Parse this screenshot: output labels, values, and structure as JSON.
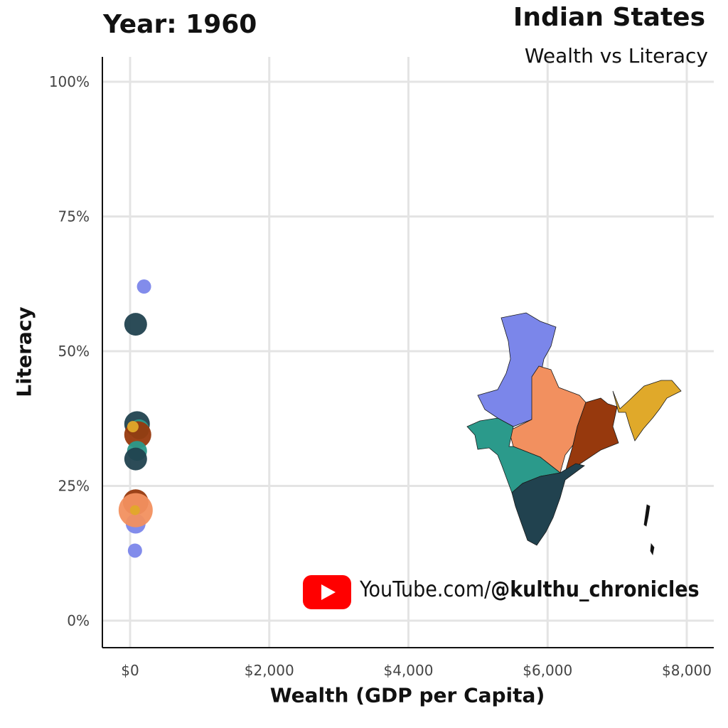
{
  "header": {
    "year_label": "Year: 1960",
    "title": "Indian States",
    "subtitle": "Wealth vs Literacy"
  },
  "watermark": {
    "icon": "youtube-play-icon",
    "prefix": "YouTube.com/",
    "handle": "@kulthu_chronicles",
    "color": "#ff0000"
  },
  "map": {
    "icon": "india-map-icon",
    "region_colors": {
      "north": "#7b86ea",
      "central": "#f2905f",
      "east": "#97390d",
      "northeast": "#e0a92a",
      "west": "#2b9a8b",
      "south": "#21424f"
    }
  },
  "chart_data": {
    "type": "scatter",
    "xlabel": "Wealth (GDP per Capita)",
    "ylabel": "Literacy",
    "xlim": [
      -400,
      8400
    ],
    "ylim": [
      -5,
      103
    ],
    "x_ticks": [
      0,
      2000,
      4000,
      6000,
      8000
    ],
    "x_tick_labels": [
      "$0",
      "$2,000",
      "$4,000",
      "$6,000",
      "$8,000"
    ],
    "y_ticks": [
      0,
      25,
      50,
      75,
      100
    ],
    "y_tick_labels": [
      "0%",
      "25%",
      "50%",
      "75%",
      "100%"
    ],
    "grid": true,
    "points": [
      {
        "x": 200,
        "y": 62,
        "r": 10,
        "color": "#7b86ea"
      },
      {
        "x": 80,
        "y": 55,
        "r": 16,
        "color": "#21424f"
      },
      {
        "x": 100,
        "y": 36.5,
        "r": 18,
        "color": "#21424f"
      },
      {
        "x": 130,
        "y": 35.5,
        "r": 14,
        "color": "#2b9a8b"
      },
      {
        "x": 110,
        "y": 34.5,
        "r": 19,
        "color": "#97390d"
      },
      {
        "x": 40,
        "y": 36,
        "r": 8,
        "color": "#e0a92a"
      },
      {
        "x": 100,
        "y": 31.5,
        "r": 14,
        "color": "#2b9a8b"
      },
      {
        "x": 80,
        "y": 30,
        "r": 16,
        "color": "#21424f"
      },
      {
        "x": 80,
        "y": 22,
        "r": 18,
        "color": "#97390d"
      },
      {
        "x": 80,
        "y": 18,
        "r": 14,
        "color": "#7b86ea"
      },
      {
        "x": 80,
        "y": 20.5,
        "r": 24,
        "color": "#f2905f"
      },
      {
        "x": 70,
        "y": 20.5,
        "r": 7,
        "color": "#e0a92a"
      },
      {
        "x": 70,
        "y": 13,
        "r": 10,
        "color": "#7b86ea"
      }
    ]
  }
}
